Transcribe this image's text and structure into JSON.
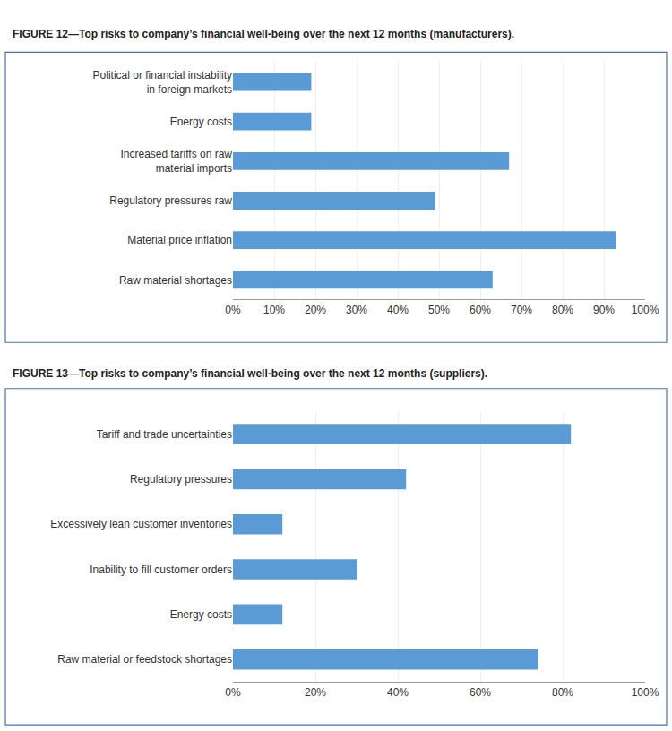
{
  "chart_data": [
    {
      "type": "bar",
      "title": "FIGURE 12—Top risks to company’s financial well-being over the next 12 months (manufacturers).",
      "orientation": "horizontal",
      "categories": [
        "Raw material shortages",
        "Material price inflation",
        "Regulatory pressures raw",
        "Increased tariffs on raw\nmaterial imports",
        "Energy costs",
        "Political or financial instability\nin foreign markets"
      ],
      "values": [
        0.63,
        0.93,
        0.49,
        0.67,
        0.19,
        0.19
      ],
      "color": "#5b9bd5",
      "xlim": [
        0,
        1.0
      ],
      "xticks": [
        {
          "value": 0.0,
          "label": "0%"
        },
        {
          "value": 0.1,
          "label": "10%"
        },
        {
          "value": 0.2,
          "label": "20%"
        },
        {
          "value": 0.3,
          "label": "30%"
        },
        {
          "value": 0.4,
          "label": "40%"
        },
        {
          "value": 0.5,
          "label": "50%"
        },
        {
          "value": 0.6,
          "label": "60%"
        },
        {
          "value": 0.7,
          "label": "70%"
        },
        {
          "value": 0.8,
          "label": "80%"
        },
        {
          "value": 0.9,
          "label": "90%"
        },
        {
          "value": 1.0,
          "label": "100%"
        }
      ],
      "grid": true
    },
    {
      "type": "bar",
      "title": "FIGURE 13—Top risks to company’s financial well-being over the next 12 months (suppliers).",
      "orientation": "horizontal",
      "categories": [
        "Raw material or feedstock shortages",
        "Energy costs",
        "Inability to fill customer orders",
        "Excessively lean customer inventories",
        "Regulatory pressures",
        "Tariff and trade uncertainties"
      ],
      "values": [
        0.74,
        0.12,
        0.3,
        0.12,
        0.42,
        0.82
      ],
      "color": "#5b9bd5",
      "xlim": [
        0,
        1.0
      ],
      "xticks": [
        {
          "value": 0.0,
          "label": "0%"
        },
        {
          "value": 0.2,
          "label": "20%"
        },
        {
          "value": 0.4,
          "label": "40%"
        },
        {
          "value": 0.6,
          "label": "60%"
        },
        {
          "value": 0.8,
          "label": "80%"
        },
        {
          "value": 1.0,
          "label": "100%"
        }
      ],
      "grid": true
    }
  ]
}
